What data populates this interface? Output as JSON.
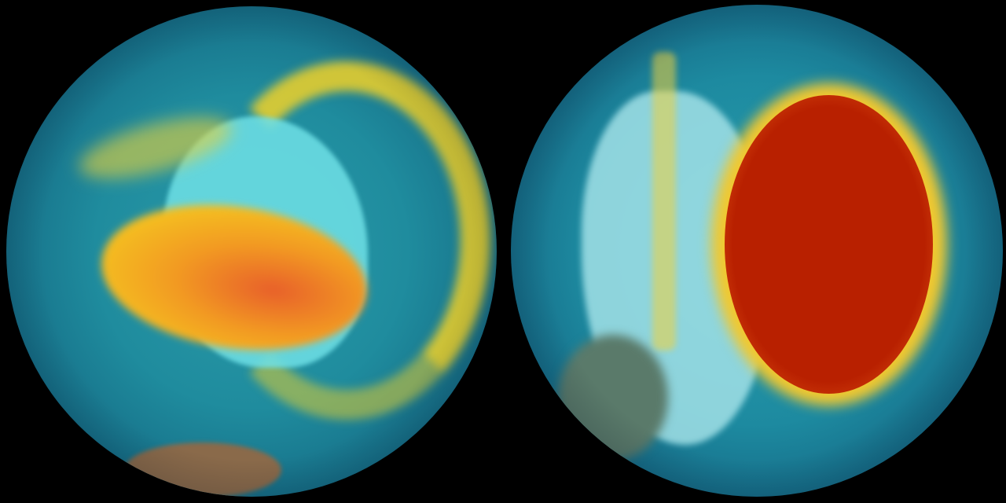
{
  "image": {
    "left_globe": {
      "subject": "globe-visualization",
      "colors": {
        "background": "#1f8c9e",
        "land": "#6fe0e6",
        "high": "#f07a20",
        "mid": "#f5d020",
        "edge": "#082a40"
      }
    },
    "right_globe": {
      "subject": "globe-visualization",
      "colors": {
        "background": "#1d8aa0",
        "land": "#a8e6ea",
        "high": "#b02000",
        "mid": "#f5a020",
        "edge": "#06223a"
      }
    }
  }
}
